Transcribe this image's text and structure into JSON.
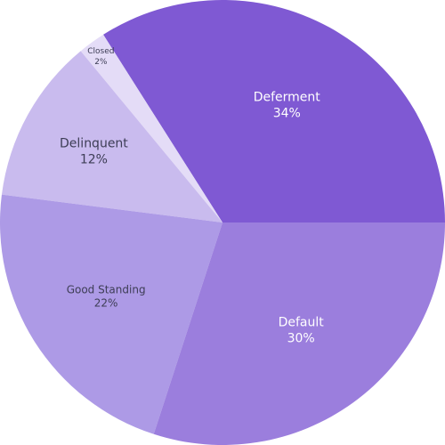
{
  "chart_data": {
    "type": "pie",
    "title": "",
    "legend": "none",
    "slices": [
      {
        "label": "Deferment",
        "value": 34,
        "display": "34%",
        "color": "#7f59d3",
        "text_color": "#ffffff"
      },
      {
        "label": "Closed",
        "value": 2,
        "display": "2%",
        "color": "#e4dcf7",
        "text_color": "#3d3d55"
      },
      {
        "label": "Delinquent",
        "value": 12,
        "display": "12%",
        "color": "#c9bbee",
        "text_color": "#3d3d55"
      },
      {
        "label": "Good Standing",
        "value": 22,
        "display": "22%",
        "color": "#ad9ae6",
        "text_color": "#3d3d55"
      },
      {
        "label": "Default",
        "value": 30,
        "display": "30%",
        "color": "#9b7edd",
        "text_color": "#ffffff"
      }
    ]
  }
}
